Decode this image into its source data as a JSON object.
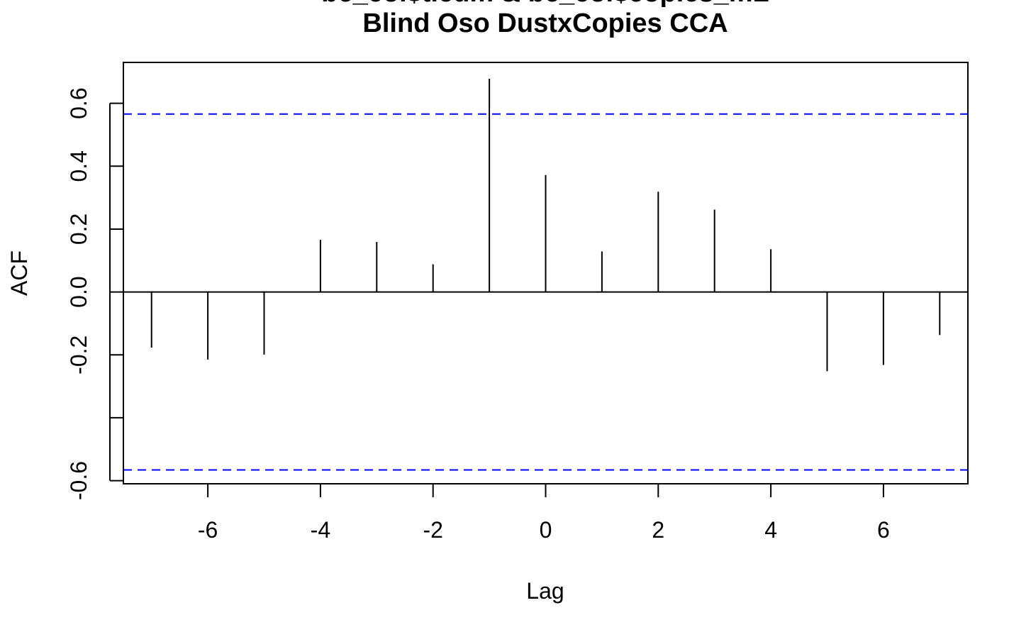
{
  "chart_data": {
    "type": "bar",
    "title_lines": [
      "bc_col$t.cum & bc_col$copies_mL",
      "Blind Oso DustxCopies CCA"
    ],
    "xlabel": "Lag",
    "ylabel": "ACF",
    "xlim": [
      -7.5,
      7.5
    ],
    "ylim": [
      -0.61,
      0.73
    ],
    "x_ticks": [
      -6,
      -4,
      -2,
      0,
      2,
      4,
      6
    ],
    "x_tick_labels": [
      "-6",
      "-4",
      "-2",
      "0",
      "2",
      "4",
      "6"
    ],
    "y_ticks": [
      -0.6,
      -0.4,
      -0.2,
      0.0,
      0.2,
      0.4,
      0.6
    ],
    "y_tick_labels": [
      "-0.6",
      "",
      "-0.2",
      "0.0",
      "0.2",
      "0.4",
      "0.6"
    ],
    "lags": [
      -7,
      -6,
      -5,
      -4,
      -3,
      -2,
      -1,
      0,
      1,
      2,
      3,
      4,
      5,
      6,
      7
    ],
    "values": [
      -0.177,
      -0.215,
      -0.199,
      0.166,
      0.159,
      0.088,
      0.678,
      0.372,
      0.129,
      0.319,
      0.262,
      0.136,
      -0.252,
      -0.232,
      -0.137
    ],
    "confidence_limit": 0.566,
    "grid": false,
    "colors": {
      "bars": "#000000",
      "confidence": "#0000ff",
      "axis": "#000000"
    }
  }
}
